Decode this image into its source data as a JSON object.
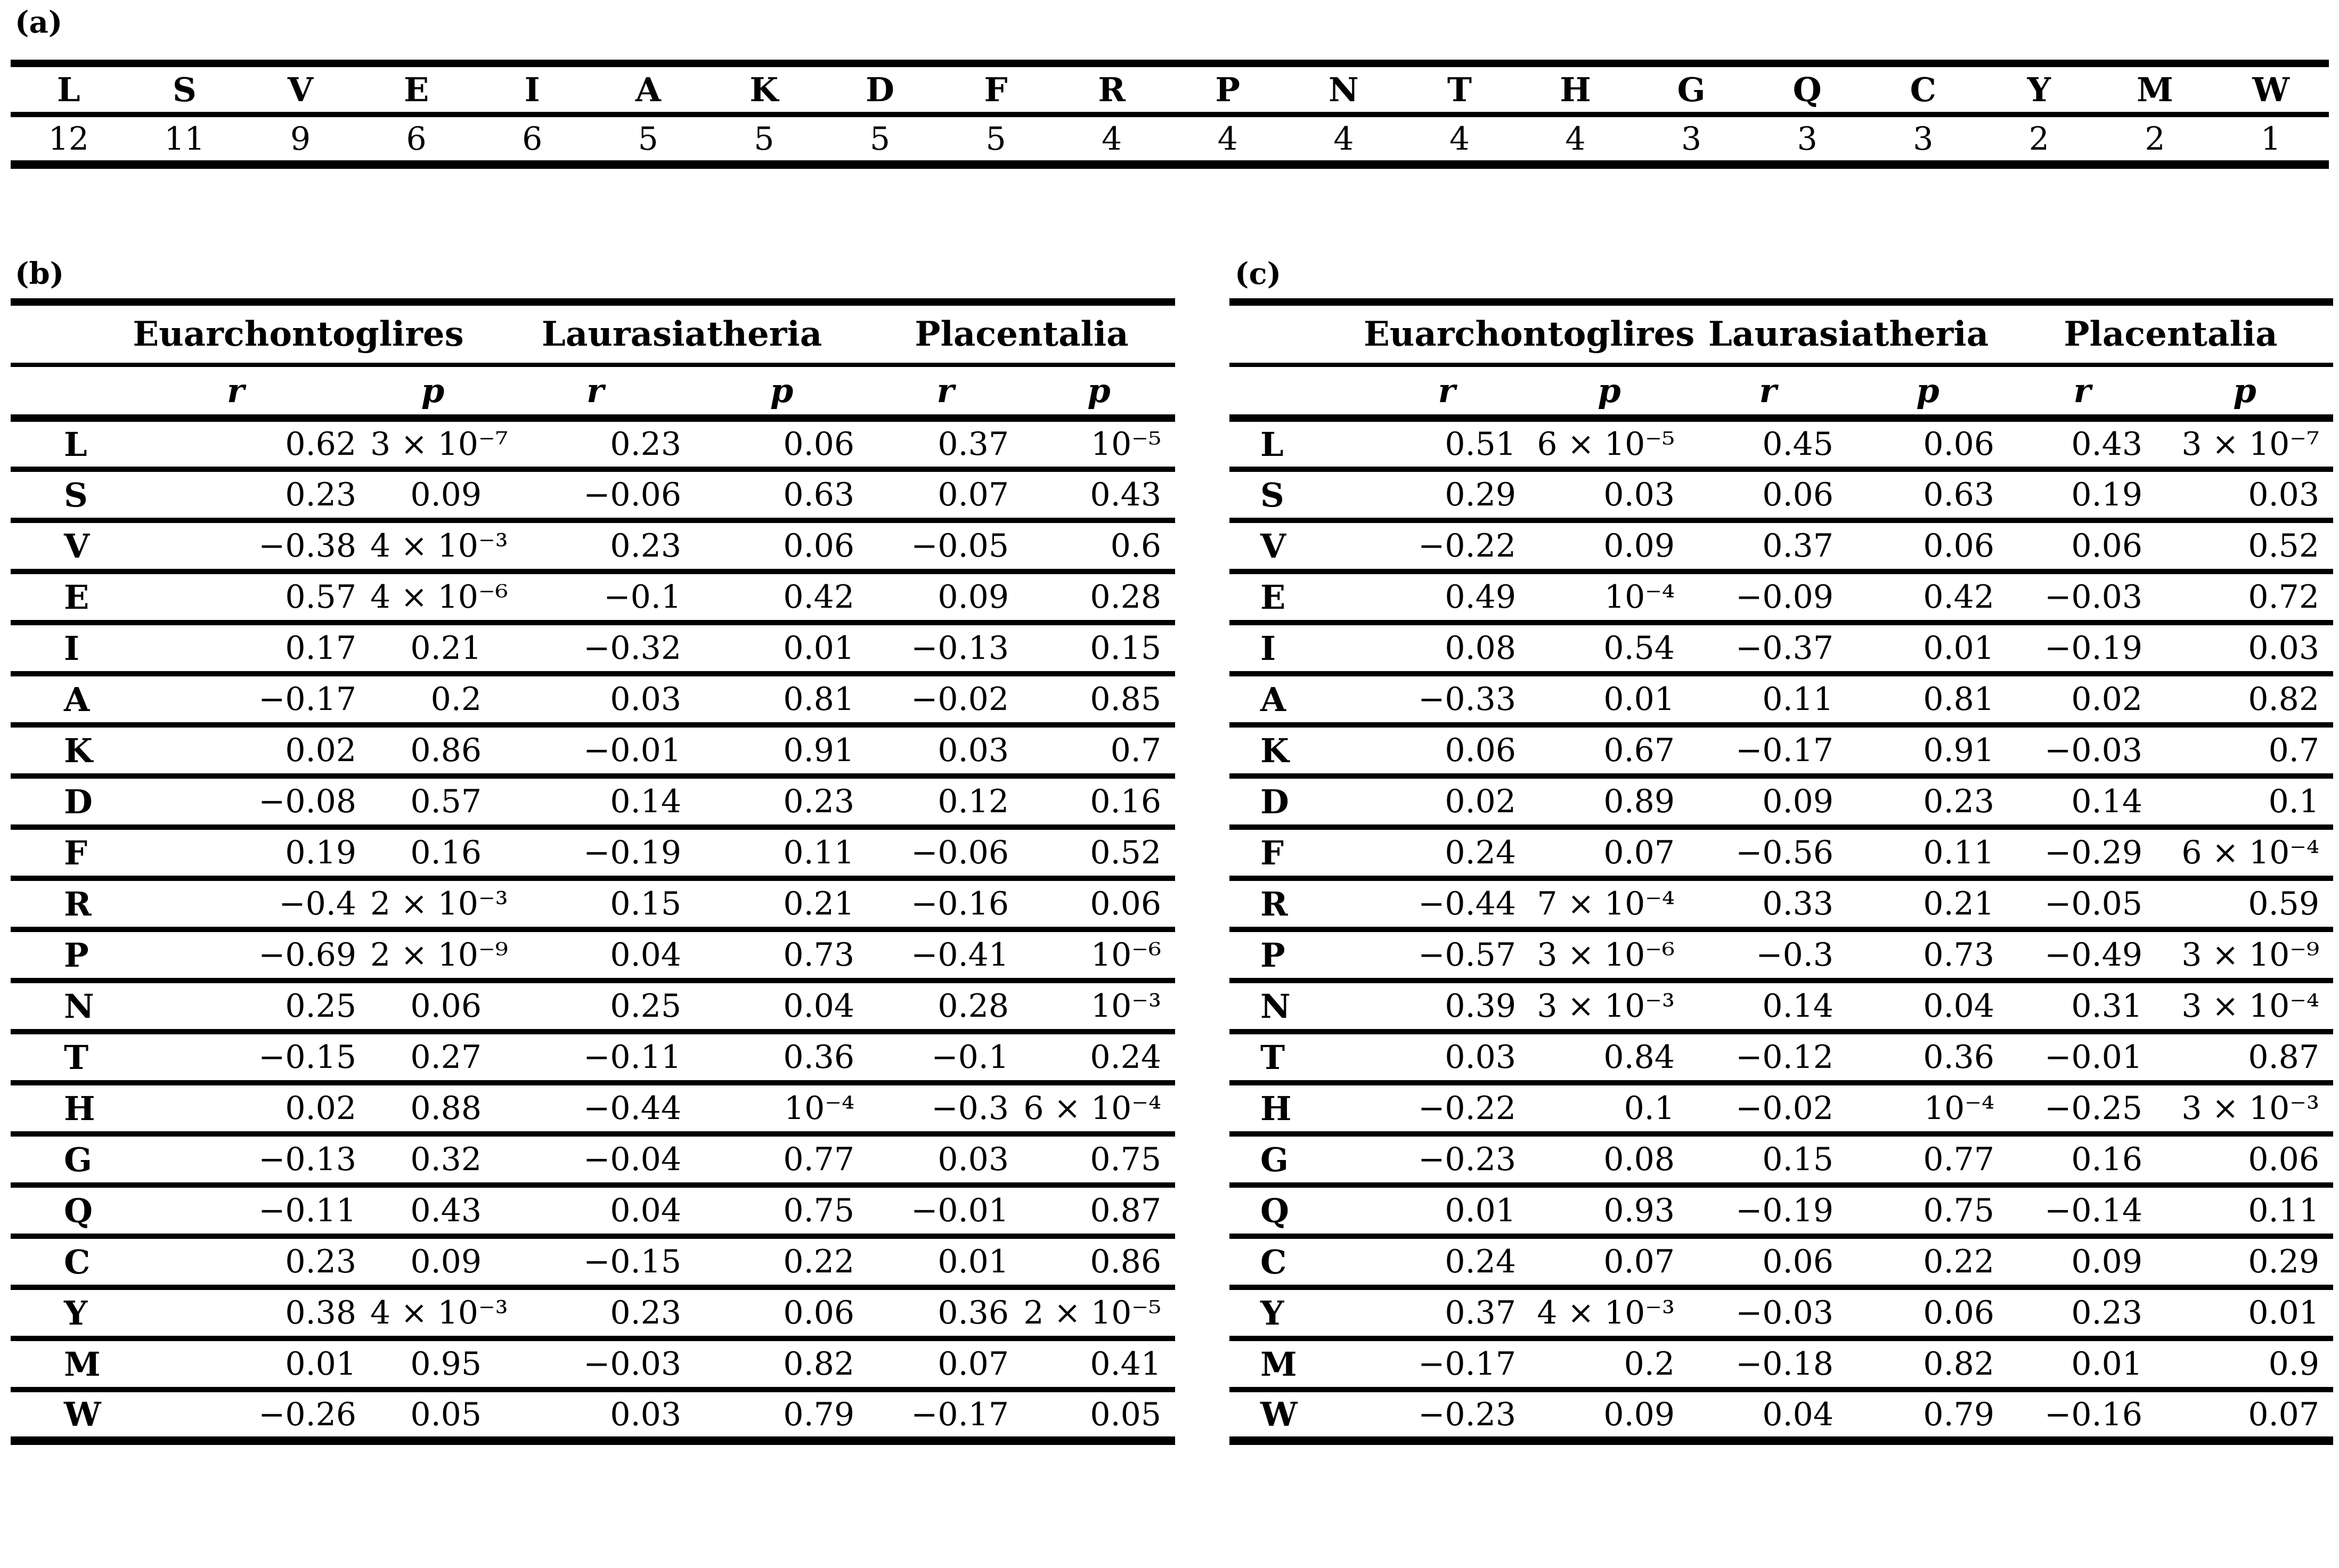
{
  "panelA": {
    "label": "(a)",
    "letters": [
      "L",
      "S",
      "V",
      "E",
      "I",
      "A",
      "K",
      "D",
      "F",
      "R",
      "P",
      "N",
      "T",
      "H",
      "G",
      "Q",
      "C",
      "Y",
      "M",
      "W"
    ],
    "counts": [
      "12",
      "11",
      "9",
      "6",
      "6",
      "5",
      "5",
      "5",
      "5",
      "4",
      "4",
      "4",
      "4",
      "4",
      "3",
      "3",
      "3",
      "2",
      "2",
      "1"
    ]
  },
  "correlation_header": {
    "groups": [
      "Euarchontoglires",
      "Laurasiatheria",
      "Placentalia"
    ],
    "r_label": "r",
    "p_label": "p"
  },
  "panelB": {
    "label": "(b)",
    "rows": [
      {
        "label": "L",
        "values": [
          "0.62",
          "3 × 10⁻⁷",
          "0.23",
          "0.06",
          "0.37",
          "10⁻⁵"
        ]
      },
      {
        "label": "S",
        "values": [
          "0.23",
          "0.09",
          "−0.06",
          "0.63",
          "0.07",
          "0.43"
        ]
      },
      {
        "label": "V",
        "values": [
          "−0.38",
          "4 × 10⁻³",
          "0.23",
          "0.06",
          "−0.05",
          "0.6"
        ]
      },
      {
        "label": "E",
        "values": [
          "0.57",
          "4 × 10⁻⁶",
          "−0.1",
          "0.42",
          "0.09",
          "0.28"
        ]
      },
      {
        "label": "I",
        "values": [
          "0.17",
          "0.21",
          "−0.32",
          "0.01",
          "−0.13",
          "0.15"
        ]
      },
      {
        "label": "A",
        "values": [
          "−0.17",
          "0.2",
          "0.03",
          "0.81",
          "−0.02",
          "0.85"
        ]
      },
      {
        "label": "K",
        "values": [
          "0.02",
          "0.86",
          "−0.01",
          "0.91",
          "0.03",
          "0.7"
        ]
      },
      {
        "label": "D",
        "values": [
          "−0.08",
          "0.57",
          "0.14",
          "0.23",
          "0.12",
          "0.16"
        ]
      },
      {
        "label": "F",
        "values": [
          "0.19",
          "0.16",
          "−0.19",
          "0.11",
          "−0.06",
          "0.52"
        ]
      },
      {
        "label": "R",
        "values": [
          "−0.4",
          "2 × 10⁻³",
          "0.15",
          "0.21",
          "−0.16",
          "0.06"
        ]
      },
      {
        "label": "P",
        "values": [
          "−0.69",
          "2 × 10⁻⁹",
          "0.04",
          "0.73",
          "−0.41",
          "10⁻⁶"
        ]
      },
      {
        "label": "N",
        "values": [
          "0.25",
          "0.06",
          "0.25",
          "0.04",
          "0.28",
          "10⁻³"
        ]
      },
      {
        "label": "T",
        "values": [
          "−0.15",
          "0.27",
          "−0.11",
          "0.36",
          "−0.1",
          "0.24"
        ]
      },
      {
        "label": "H",
        "values": [
          "0.02",
          "0.88",
          "−0.44",
          "10⁻⁴",
          "−0.3",
          "6 × 10⁻⁴"
        ]
      },
      {
        "label": "G",
        "values": [
          "−0.13",
          "0.32",
          "−0.04",
          "0.77",
          "0.03",
          "0.75"
        ]
      },
      {
        "label": "Q",
        "values": [
          "−0.11",
          "0.43",
          "0.04",
          "0.75",
          "−0.01",
          "0.87"
        ]
      },
      {
        "label": "C",
        "values": [
          "0.23",
          "0.09",
          "−0.15",
          "0.22",
          "0.01",
          "0.86"
        ]
      },
      {
        "label": "Y",
        "values": [
          "0.38",
          "4 × 10⁻³",
          "0.23",
          "0.06",
          "0.36",
          "2 × 10⁻⁵"
        ]
      },
      {
        "label": "M",
        "values": [
          "0.01",
          "0.95",
          "−0.03",
          "0.82",
          "0.07",
          "0.41"
        ]
      },
      {
        "label": "W",
        "values": [
          "−0.26",
          "0.05",
          "0.03",
          "0.79",
          "−0.17",
          "0.05"
        ]
      }
    ]
  },
  "panelC": {
    "label": "(c)",
    "rows": [
      {
        "label": "L",
        "values": [
          "0.51",
          "6 × 10⁻⁵",
          "0.45",
          "0.06",
          "0.43",
          "3 × 10⁻⁷"
        ]
      },
      {
        "label": "S",
        "values": [
          "0.29",
          "0.03",
          "0.06",
          "0.63",
          "0.19",
          "0.03"
        ]
      },
      {
        "label": "V",
        "values": [
          "−0.22",
          "0.09",
          "0.37",
          "0.06",
          "0.06",
          "0.52"
        ]
      },
      {
        "label": "E",
        "values": [
          "0.49",
          "10⁻⁴",
          "−0.09",
          "0.42",
          "−0.03",
          "0.72"
        ]
      },
      {
        "label": "I",
        "values": [
          "0.08",
          "0.54",
          "−0.37",
          "0.01",
          "−0.19",
          "0.03"
        ]
      },
      {
        "label": "A",
        "values": [
          "−0.33",
          "0.01",
          "0.11",
          "0.81",
          "0.02",
          "0.82"
        ]
      },
      {
        "label": "K",
        "values": [
          "0.06",
          "0.67",
          "−0.17",
          "0.91",
          "−0.03",
          "0.7"
        ]
      },
      {
        "label": "D",
        "values": [
          "0.02",
          "0.89",
          "0.09",
          "0.23",
          "0.14",
          "0.1"
        ]
      },
      {
        "label": "F",
        "values": [
          "0.24",
          "0.07",
          "−0.56",
          "0.11",
          "−0.29",
          "6 × 10⁻⁴"
        ]
      },
      {
        "label": "R",
        "values": [
          "−0.44",
          "7 × 10⁻⁴",
          "0.33",
          "0.21",
          "−0.05",
          "0.59"
        ]
      },
      {
        "label": "P",
        "values": [
          "−0.57",
          "3 × 10⁻⁶",
          "−0.3",
          "0.73",
          "−0.49",
          "3 × 10⁻⁹"
        ]
      },
      {
        "label": "N",
        "values": [
          "0.39",
          "3 × 10⁻³",
          "0.14",
          "0.04",
          "0.31",
          "3 × 10⁻⁴"
        ]
      },
      {
        "label": "T",
        "values": [
          "0.03",
          "0.84",
          "−0.12",
          "0.36",
          "−0.01",
          "0.87"
        ]
      },
      {
        "label": "H",
        "values": [
          "−0.22",
          "0.1",
          "−0.02",
          "10⁻⁴",
          "−0.25",
          "3 × 10⁻³"
        ]
      },
      {
        "label": "G",
        "values": [
          "−0.23",
          "0.08",
          "0.15",
          "0.77",
          "0.16",
          "0.06"
        ]
      },
      {
        "label": "Q",
        "values": [
          "0.01",
          "0.93",
          "−0.19",
          "0.75",
          "−0.14",
          "0.11"
        ]
      },
      {
        "label": "C",
        "values": [
          "0.24",
          "0.07",
          "0.06",
          "0.22",
          "0.09",
          "0.29"
        ]
      },
      {
        "label": "Y",
        "values": [
          "0.37",
          "4 × 10⁻³",
          "−0.03",
          "0.06",
          "0.23",
          "0.01"
        ]
      },
      {
        "label": "M",
        "values": [
          "−0.17",
          "0.2",
          "−0.18",
          "0.82",
          "0.01",
          "0.9"
        ]
      },
      {
        "label": "W",
        "values": [
          "−0.23",
          "0.09",
          "0.04",
          "0.79",
          "−0.16",
          "0.07"
        ]
      }
    ]
  }
}
